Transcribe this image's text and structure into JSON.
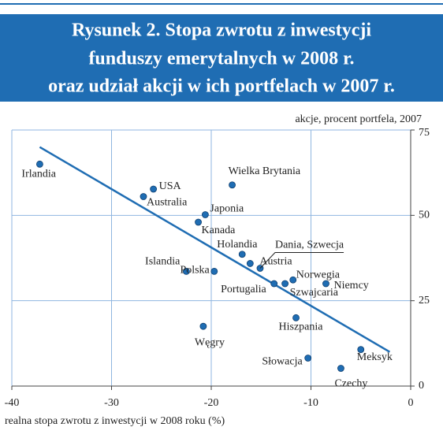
{
  "chart_data": {
    "type": "scatter",
    "title": [
      "Rysunek 2. Stopa zwrotu z inwestycji",
      "funduszy emerytalnych w 2008 r.",
      "oraz udział akcji w ich portfelach w 2007 r."
    ],
    "xlabel": "realna stopa zwrotu z inwestycji w 2008 roku (%)",
    "ylabel": "akcje, procent portfela, 2007",
    "xlim": [
      -40,
      0
    ],
    "xticks": [
      -40,
      -30,
      -20,
      -10,
      0
    ],
    "ylim": [
      0,
      75
    ],
    "yticks": [
      0,
      25,
      50,
      75
    ],
    "grid": true,
    "color": "#1f6db3",
    "points": {
      "labels": [
        "Irlandia",
        "USA",
        "Australia",
        "Wielka Brytania",
        "Japonia",
        "Kanada",
        "Holandia",
        "Austria",
        "Dania, Szwecja",
        "Islandia",
        "Polska",
        "Portugalia",
        "Szwajcaria",
        "Norwegia",
        "Niemcy",
        "Hiszpania",
        "Węgry",
        "Meksyk",
        "Słowacja",
        "Czechy"
      ],
      "x": [
        -37.2,
        -25.8,
        -26.8,
        -17.9,
        -20.6,
        -21.3,
        -16.9,
        -16.1,
        -15.1,
        -22.5,
        -19.7,
        -13.7,
        -12.6,
        -11.8,
        -8.5,
        -11.5,
        -20.8,
        -5.0,
        -10.3,
        -7.0
      ],
      "y": [
        65,
        57.7,
        55.5,
        58.9,
        50.2,
        48,
        38.6,
        35.9,
        34.5,
        33.6,
        33.6,
        30,
        30,
        31.1,
        30,
        20,
        17.5,
        10.7,
        8.2,
        5.2
      ]
    },
    "trendline": {
      "x": [
        -37.2,
        -2.1
      ],
      "y": [
        70,
        10
      ]
    }
  }
}
